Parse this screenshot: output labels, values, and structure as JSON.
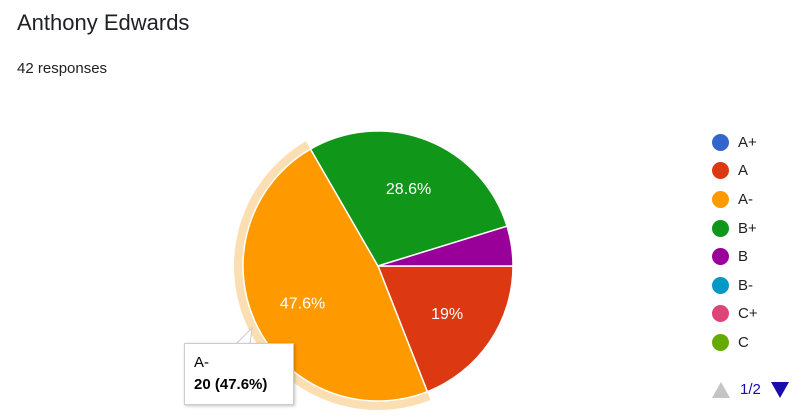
{
  "header": {
    "title": "Anthony Edwards",
    "subtitle": "42 responses"
  },
  "colors": {
    "A+": "#3366cc",
    "A": "#dc3912",
    "A-": "#ff9900",
    "B+": "#109618",
    "B": "#990099",
    "B-": "#0099c6",
    "C+": "#dd4477",
    "C": "#66aa00",
    "highlight": "#fbdfb3"
  },
  "chart_data": {
    "type": "pie",
    "start_angle_deg": 0,
    "total": 42,
    "slices": [
      {
        "label": "A+",
        "value": 0,
        "percent_label": ""
      },
      {
        "label": "A",
        "value": 8,
        "percent_label": "19%"
      },
      {
        "label": "A-",
        "value": 20,
        "percent_label": "47.6%"
      },
      {
        "label": "B+",
        "value": 12,
        "percent_label": "28.6%"
      },
      {
        "label": "B",
        "value": 2,
        "percent_label": ""
      },
      {
        "label": "B-",
        "value": 0,
        "percent_label": ""
      },
      {
        "label": "C+",
        "value": 0,
        "percent_label": ""
      },
      {
        "label": "C",
        "value": 0,
        "percent_label": ""
      }
    ],
    "highlighted_slice": "A-",
    "legend": {
      "placement": "right",
      "page": "1/2"
    },
    "tooltip": {
      "label": "A-",
      "value": "20 (47.6%)"
    }
  }
}
